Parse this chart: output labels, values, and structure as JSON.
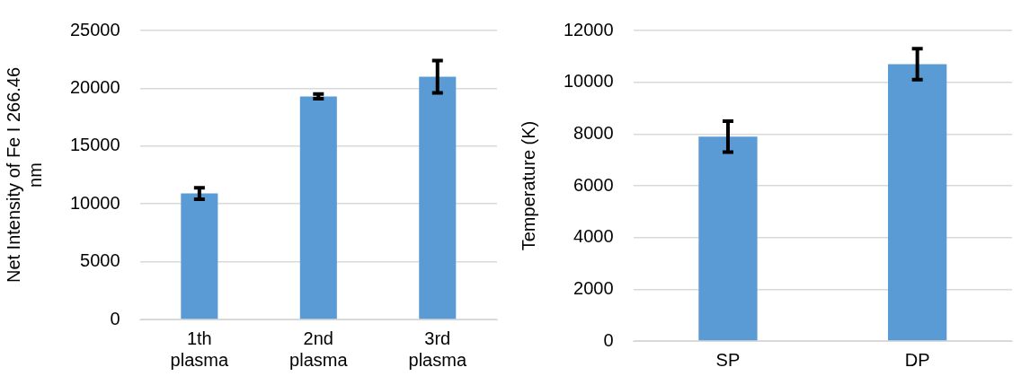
{
  "chart_data": [
    {
      "type": "bar",
      "ylabel": "Net Intensity of Fe I 266.46 nm",
      "categories": [
        "1th plasma",
        "2nd plasma",
        "3rd plasma"
      ],
      "values": [
        10900,
        19300,
        21000
      ],
      "errors": [
        500,
        200,
        1400
      ],
      "color": "#5b9bd5",
      "ylim": [
        0,
        25000
      ],
      "yticks": [
        0,
        5000,
        10000,
        15000,
        20000,
        25000
      ],
      "grid": "y",
      "legend": false
    },
    {
      "type": "bar",
      "ylabel": "Temperature (K)",
      "categories": [
        "SP",
        "DP"
      ],
      "values": [
        7900,
        10700
      ],
      "errors": [
        600,
        600
      ],
      "color": "#5b9bd5",
      "ylim": [
        0,
        12000
      ],
      "yticks": [
        0,
        2000,
        4000,
        6000,
        8000,
        10000,
        12000
      ],
      "grid": "y",
      "legend": false
    }
  ]
}
